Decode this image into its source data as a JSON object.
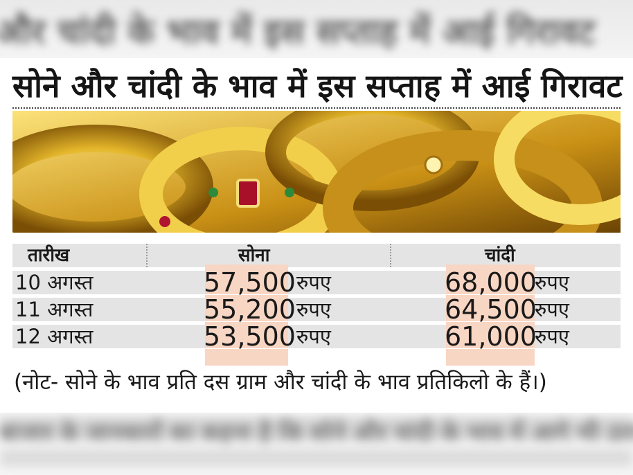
{
  "blurred_top_text": "और चांदी के भाव में इस सप्ताह में आई गिरावट",
  "blurred_bottom_text": "बाजार के जानकारों का कहना है कि सोने और चांदी के भाव में आगे भी उतार-चढ़ाव देखने को मिल सकता है",
  "headline": "सोने और चांदी के भाव में इस सप्ताह में आई गिरावट",
  "table": {
    "headers": {
      "date": "तारीख",
      "gold": "सोना",
      "silver": "चांदी"
    },
    "unit": "रुपए",
    "rows": [
      {
        "date": "10 अगस्त",
        "gold": "57,500",
        "silver": "68,000"
      },
      {
        "date": "11 अगस्त",
        "gold": "55,200",
        "silver": "64,500"
      },
      {
        "date": "12 अगस्त",
        "gold": "53,500",
        "silver": "61,000"
      }
    ]
  },
  "footnote": "(नोट- सोने के भाव प्रति दस ग्राम और चांदी के भाव प्रतिकिलो के हैं।)",
  "colors": {
    "highlight": "#f8d6c4",
    "row_shade": "#e4e4e4",
    "gold": "#d6a21a"
  },
  "photo_icon": "gold-jewelry-photo"
}
